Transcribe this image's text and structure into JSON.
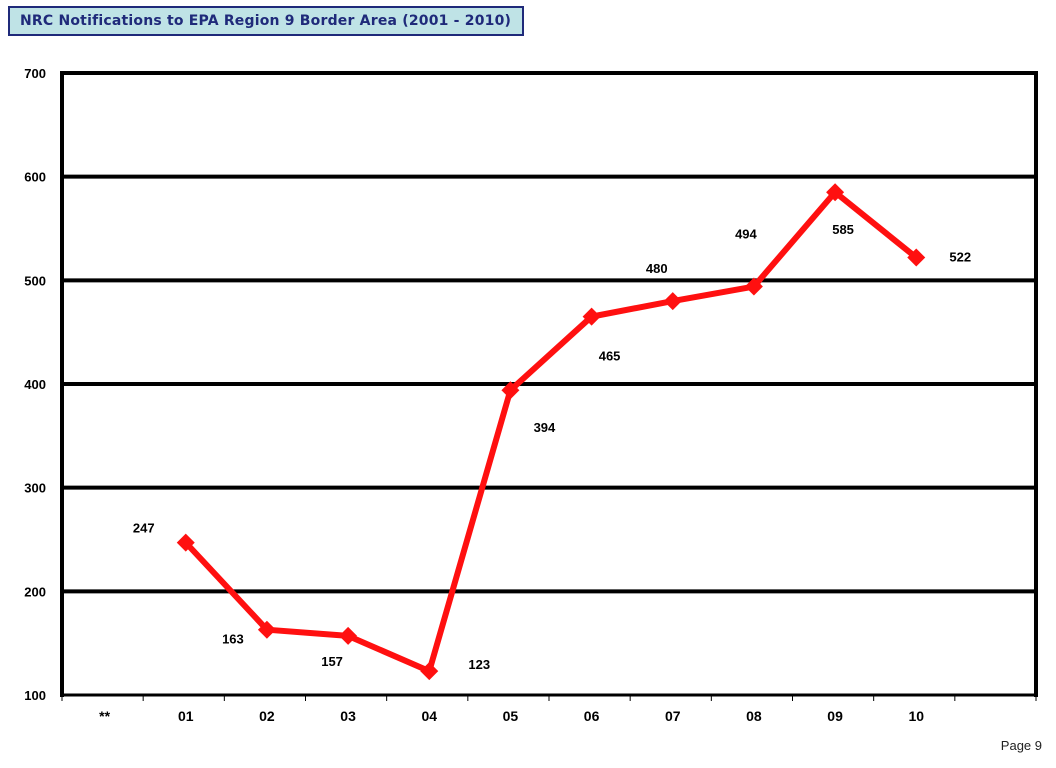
{
  "title": "NRC Notifications to EPA Region 9 Border Area (2001 - 2010)",
  "page_label": "Page 9",
  "colors": {
    "series": "#ff1010",
    "grid": "#000000",
    "title_bg": "#bfe3e6",
    "title_text": "#1f2a7a"
  },
  "chart_data": {
    "type": "line",
    "title": "NRC Notifications to EPA Region 9 Border Area (2001 - 2010)",
    "categories": [
      "**",
      "01",
      "02",
      "03",
      "04",
      "05",
      "06",
      "07",
      "08",
      "09",
      "10"
    ],
    "series": [
      {
        "values": [
          null,
          247,
          163,
          157,
          123,
          394,
          465,
          480,
          494,
          585,
          522
        ]
      }
    ],
    "ylim": [
      100,
      700
    ],
    "yticks": [
      100,
      200,
      300,
      400,
      500,
      600,
      700
    ],
    "grid": true,
    "marker": "diamond"
  }
}
